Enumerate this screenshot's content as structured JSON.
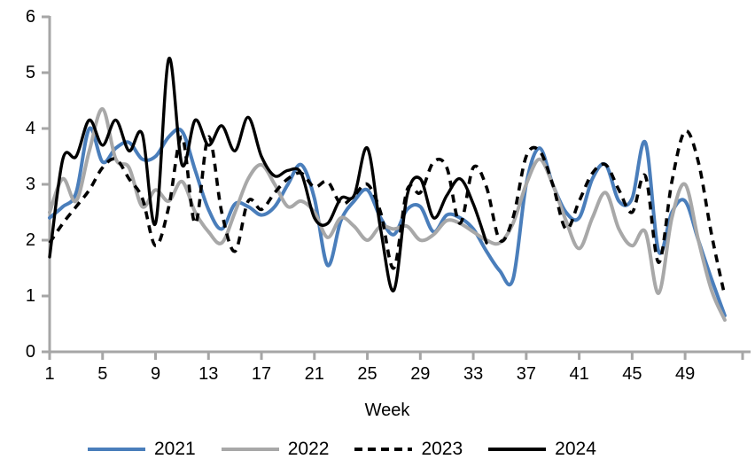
{
  "chart_data": {
    "type": "line",
    "title": "",
    "xlabel": "Week",
    "ylabel": "",
    "x_description": "weekly values, week = array index + 1",
    "xlim": [
      1,
      52
    ],
    "ylim": [
      0,
      6
    ],
    "x_ticks": [
      1,
      5,
      9,
      13,
      17,
      21,
      25,
      29,
      33,
      37,
      41,
      45,
      49
    ],
    "y_ticks": [
      0,
      1,
      2,
      3,
      4,
      5,
      6
    ],
    "grid": false,
    "legend_position": "bottom",
    "axis_color": "#A6A6A6",
    "series": [
      {
        "name": "2021",
        "color": "#4A7EBB",
        "style": "solid",
        "values": [
          2.4,
          2.6,
          2.85,
          4.0,
          3.4,
          3.65,
          3.75,
          3.45,
          3.5,
          3.85,
          3.95,
          3.25,
          2.55,
          2.2,
          2.65,
          2.6,
          2.45,
          2.6,
          3.0,
          3.35,
          2.75,
          1.55,
          2.35,
          2.7,
          2.9,
          2.4,
          2.1,
          2.55,
          2.6,
          2.15,
          2.45,
          2.4,
          2.2,
          1.8,
          1.45,
          1.3,
          3.0,
          3.65,
          3.0,
          2.5,
          2.4,
          3.1,
          3.35,
          2.7,
          2.75,
          3.75,
          1.8,
          2.5,
          2.7,
          2.0,
          1.3,
          0.65
        ]
      },
      {
        "name": "2022",
        "color": "#A8A8A8",
        "style": "solid",
        "values": [
          2.5,
          3.1,
          2.7,
          3.6,
          4.35,
          3.45,
          3.3,
          2.6,
          2.9,
          2.7,
          3.05,
          2.5,
          2.15,
          1.95,
          2.5,
          3.1,
          3.35,
          3.0,
          2.6,
          2.7,
          2.5,
          2.05,
          2.4,
          2.25,
          2.0,
          2.25,
          2.2,
          2.25,
          2.0,
          2.1,
          2.35,
          2.3,
          2.15,
          2.0,
          1.95,
          2.3,
          3.0,
          3.45,
          3.0,
          2.35,
          1.85,
          2.4,
          2.85,
          2.2,
          1.9,
          2.15,
          1.05,
          2.4,
          3.0,
          2.0,
          1.1,
          0.57
        ]
      },
      {
        "name": "2023",
        "color": "#000000",
        "style": "dashed",
        "values": [
          1.95,
          2.3,
          2.6,
          2.9,
          3.3,
          3.45,
          3.1,
          2.75,
          1.9,
          2.6,
          3.85,
          2.3,
          3.85,
          2.5,
          1.8,
          2.7,
          2.55,
          2.85,
          3.1,
          3.2,
          2.95,
          3.05,
          2.65,
          2.8,
          3.0,
          2.5,
          1.5,
          2.9,
          2.85,
          3.4,
          3.3,
          2.3,
          3.3,
          2.95,
          2.0,
          2.4,
          3.5,
          3.6,
          3.0,
          2.2,
          2.7,
          3.2,
          3.35,
          2.9,
          2.5,
          3.15,
          1.6,
          3.05,
          3.95,
          3.4,
          2.1,
          1.0
        ]
      },
      {
        "name": "2024",
        "color": "#000000",
        "style": "solid",
        "values": [
          1.7,
          3.45,
          3.5,
          4.15,
          3.7,
          4.15,
          3.6,
          3.9,
          2.3,
          5.25,
          3.35,
          4.15,
          3.7,
          4.05,
          3.6,
          4.2,
          3.5,
          3.15,
          3.25,
          3.2,
          2.4,
          2.3,
          2.75,
          2.8,
          3.65,
          2.2,
          1.1,
          2.8,
          3.1,
          2.4,
          2.8,
          3.1,
          2.65,
          1.95
        ]
      }
    ]
  },
  "x_axis": {
    "title": "Week"
  },
  "legend": {
    "items": [
      {
        "label": "2021"
      },
      {
        "label": "2022"
      },
      {
        "label": "2023"
      },
      {
        "label": "2024"
      }
    ]
  }
}
